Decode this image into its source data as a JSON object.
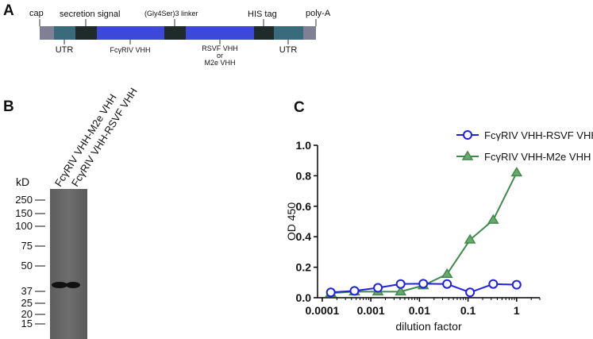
{
  "panel_a": {
    "label": "A",
    "above": [
      "cap",
      "secretion signal",
      "(Gly4Ser)3 linker",
      "HIS tag",
      "poly-A"
    ],
    "below": [
      "UTR",
      "FcγRIV VHH",
      "RSVF VHH",
      "or",
      "M2e VHH",
      "UTR"
    ]
  },
  "panel_b": {
    "label": "B",
    "lanes": [
      "FcγRIV VHH-M2e VHH",
      "FcγRIV VHH-RSVF VHH"
    ],
    "unit": "kD",
    "markers": [
      "250",
      "150",
      "100",
      "75",
      "50",
      "37",
      "25",
      "20",
      "15"
    ]
  },
  "chart_data": {
    "type": "line",
    "label": "C",
    "xlabel": "dilution factor",
    "ylabel": "OD 450",
    "xscale": "log",
    "x": [
      0.00015,
      0.00046,
      0.0014,
      0.0041,
      0.012,
      0.037,
      0.11,
      0.33,
      1
    ],
    "series": [
      {
        "name": "FcγRIV VHH-RSVF VHH",
        "color": "#2020e0",
        "marker": "circle",
        "values": [
          0.035,
          0.045,
          0.065,
          0.09,
          0.092,
          0.09,
          0.035,
          0.09,
          0.085
        ]
      },
      {
        "name": "FcγRIV VHH-M2e VHH",
        "color": "#3f8a4a",
        "marker": "triangle",
        "values": [
          0.03,
          0.04,
          0.04,
          0.04,
          0.08,
          0.155,
          0.38,
          0.51,
          0.82
        ]
      }
    ],
    "xlim": [
      8e-05,
      3
    ],
    "xticks": [
      0.0001,
      0.001,
      0.01,
      0.1,
      1
    ],
    "ylim": [
      0,
      1
    ],
    "yticks": [
      {
        "value": 0,
        "label": "0.0"
      },
      0.2,
      0.4,
      0.6,
      0.8,
      {
        "value": 1,
        "label": "1.0"
      }
    ],
    "legend": "top-right"
  }
}
